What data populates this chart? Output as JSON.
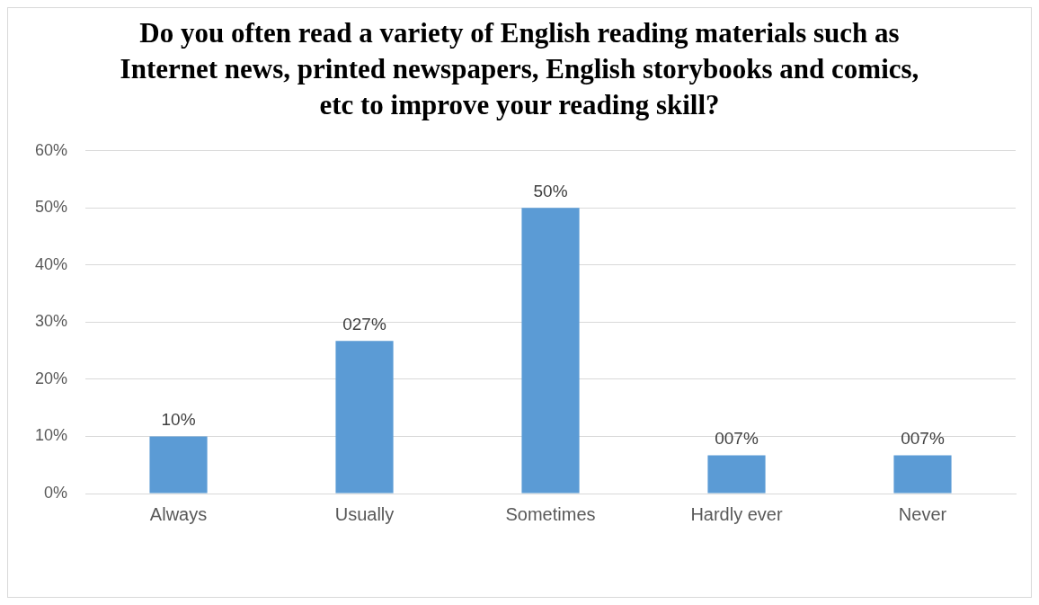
{
  "chart_data": {
    "type": "bar",
    "title": "Do you often read  a variety of English reading materials such as Internet news, printed newspapers, English storybooks and comics, etc to improve your reading skill?",
    "categories": [
      "Always",
      "Usually",
      "Sometimes",
      "Hardly ever",
      "Never"
    ],
    "values": [
      10,
      26.7,
      50,
      6.7,
      6.7
    ],
    "value_labels": [
      "10%",
      "027%",
      "50%",
      "007%",
      "007%"
    ],
    "color": "#5b9bd5",
    "ylim": [
      0,
      60
    ],
    "yticks": [
      {
        "value": 0,
        "label": "0%"
      },
      {
        "value": 10,
        "label": "10%"
      },
      {
        "value": 20,
        "label": "20%"
      },
      {
        "value": 30,
        "label": "30%"
      },
      {
        "value": 40,
        "label": "40%"
      },
      {
        "value": 50,
        "label": "50%"
      },
      {
        "value": 60,
        "label": "60%"
      }
    ],
    "grid": "y",
    "legend": false
  }
}
